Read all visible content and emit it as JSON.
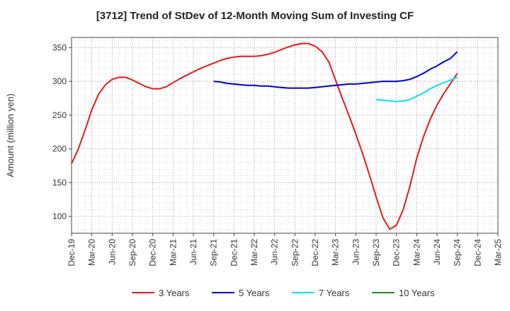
{
  "chart_data": {
    "type": "line",
    "title": "[3712]  Trend of StDev of 12-Month Moving Sum of Investing CF",
    "ylabel": "Amount (million yen)",
    "xlabel": "",
    "ylim": [
      75,
      365
    ],
    "yticks": [
      100,
      150,
      200,
      250,
      300,
      350
    ],
    "grid": true,
    "legend_position": "bottom",
    "x_tick_labels": [
      "Dec-19",
      "Mar-20",
      "Jun-20",
      "Sep-20",
      "Dec-20",
      "Mar-21",
      "Jun-21",
      "Sep-21",
      "Dec-21",
      "Mar-22",
      "Jun-22",
      "Sep-22",
      "Dec-22",
      "Mar-23",
      "Jun-23",
      "Sep-23",
      "Dec-23",
      "Mar-24",
      "Jun-24",
      "Sep-24",
      "Dec-24",
      "Mar-25"
    ],
    "series": [
      {
        "name": "3 Years",
        "color": "#e31a1c",
        "points": [
          [
            "Dec-19",
            178
          ],
          [
            "Jan-20",
            200
          ],
          [
            "Feb-20",
            228
          ],
          [
            "Mar-20",
            258
          ],
          [
            "Apr-20",
            281
          ],
          [
            "May-20",
            295
          ],
          [
            "Jun-20",
            303
          ],
          [
            "Jul-20",
            306
          ],
          [
            "Aug-20",
            306
          ],
          [
            "Sep-20",
            302
          ],
          [
            "Oct-20",
            297
          ],
          [
            "Nov-20",
            292
          ],
          [
            "Dec-20",
            289
          ],
          [
            "Jan-21",
            289
          ],
          [
            "Feb-21",
            292
          ],
          [
            "Mar-21",
            298
          ],
          [
            "Apr-21",
            304
          ],
          [
            "May-21",
            309
          ],
          [
            "Jun-21",
            314
          ],
          [
            "Jul-21",
            319
          ],
          [
            "Aug-21",
            323
          ],
          [
            "Sep-21",
            327
          ],
          [
            "Oct-21",
            331
          ],
          [
            "Nov-21",
            334
          ],
          [
            "Dec-21",
            336
          ],
          [
            "Jan-22",
            337
          ],
          [
            "Feb-22",
            337
          ],
          [
            "Mar-22",
            337
          ],
          [
            "Apr-22",
            338
          ],
          [
            "May-22",
            340
          ],
          [
            "Jun-22",
            343
          ],
          [
            "Jul-22",
            347
          ],
          [
            "Aug-22",
            351
          ],
          [
            "Sep-22",
            354
          ],
          [
            "Oct-22",
            356
          ],
          [
            "Nov-22",
            356
          ],
          [
            "Dec-22",
            352
          ],
          [
            "Jan-23",
            344
          ],
          [
            "Feb-23",
            329
          ],
          [
            "Mar-23",
            302
          ],
          [
            "Apr-23",
            275
          ],
          [
            "May-23",
            249
          ],
          [
            "Jun-23",
            222
          ],
          [
            "Jul-23",
            193
          ],
          [
            "Aug-23",
            162
          ],
          [
            "Sep-23",
            129
          ],
          [
            "Oct-23",
            98
          ],
          [
            "Nov-23",
            81
          ],
          [
            "Dec-23",
            87
          ],
          [
            "Jan-24",
            110
          ],
          [
            "Feb-24",
            145
          ],
          [
            "Mar-24",
            186
          ],
          [
            "Apr-24",
            218
          ],
          [
            "May-24",
            244
          ],
          [
            "Jun-24",
            265
          ],
          [
            "Jul-24",
            282
          ],
          [
            "Aug-24",
            297
          ],
          [
            "Sep-24",
            312
          ]
        ]
      },
      {
        "name": "5 Years",
        "color": "#0000cc",
        "points": [
          [
            "Sep-21",
            300
          ],
          [
            "Oct-21",
            299
          ],
          [
            "Nov-21",
            297
          ],
          [
            "Dec-21",
            296
          ],
          [
            "Jan-22",
            295
          ],
          [
            "Feb-22",
            294
          ],
          [
            "Mar-22",
            294
          ],
          [
            "Apr-22",
            293
          ],
          [
            "May-22",
            293
          ],
          [
            "Jun-22",
            292
          ],
          [
            "Jul-22",
            291
          ],
          [
            "Aug-22",
            290
          ],
          [
            "Sep-22",
            290
          ],
          [
            "Oct-22",
            290
          ],
          [
            "Nov-22",
            290
          ],
          [
            "Dec-22",
            291
          ],
          [
            "Jan-23",
            292
          ],
          [
            "Feb-23",
            293
          ],
          [
            "Mar-23",
            294
          ],
          [
            "Apr-23",
            295
          ],
          [
            "May-23",
            296
          ],
          [
            "Jun-23",
            296
          ],
          [
            "Jul-23",
            297
          ],
          [
            "Aug-23",
            298
          ],
          [
            "Sep-23",
            299
          ],
          [
            "Oct-23",
            300
          ],
          [
            "Nov-23",
            300
          ],
          [
            "Dec-23",
            300
          ],
          [
            "Jan-24",
            301
          ],
          [
            "Feb-24",
            303
          ],
          [
            "Mar-24",
            307
          ],
          [
            "Apr-24",
            312
          ],
          [
            "May-24",
            318
          ],
          [
            "Jun-24",
            323
          ],
          [
            "Jul-24",
            329
          ],
          [
            "Aug-24",
            334
          ],
          [
            "Sep-24",
            344
          ]
        ]
      },
      {
        "name": "7 Years",
        "color": "#00e5ee",
        "points": [
          [
            "Sep-23",
            273
          ],
          [
            "Oct-23",
            272
          ],
          [
            "Nov-23",
            271
          ],
          [
            "Dec-23",
            270
          ],
          [
            "Jan-24",
            271
          ],
          [
            "Feb-24",
            273
          ],
          [
            "Mar-24",
            278
          ],
          [
            "Apr-24",
            283
          ],
          [
            "May-24",
            289
          ],
          [
            "Jun-24",
            294
          ],
          [
            "Jul-24",
            298
          ],
          [
            "Aug-24",
            302
          ],
          [
            "Sep-24",
            306
          ]
        ]
      },
      {
        "name": "10 Years",
        "color": "#228b22",
        "points": []
      }
    ]
  }
}
